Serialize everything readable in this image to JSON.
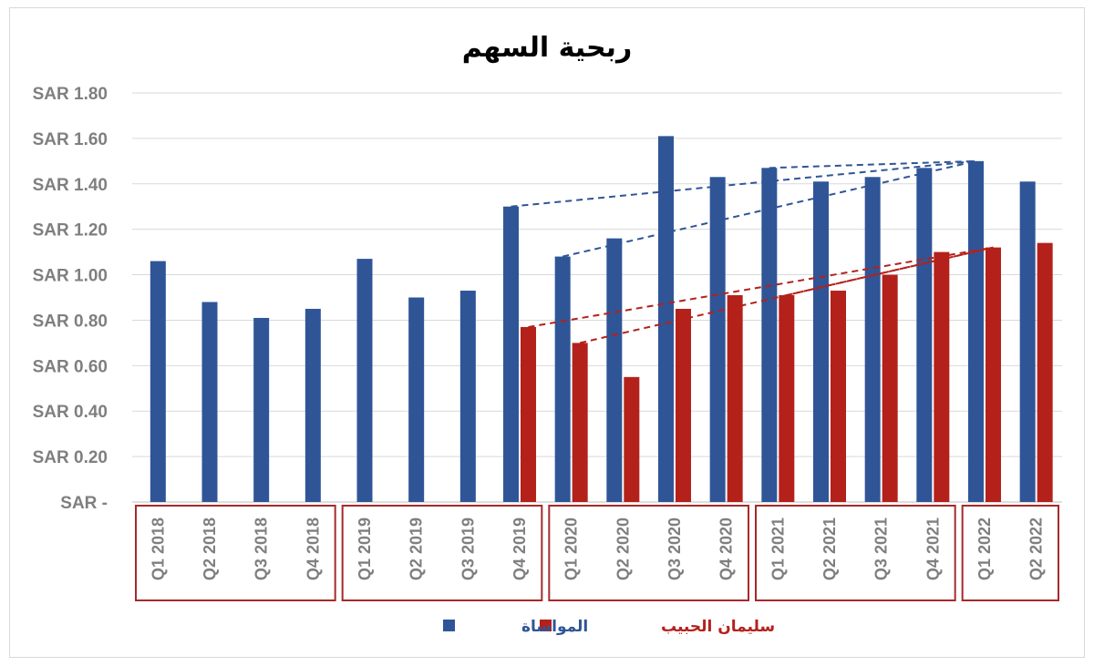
{
  "chart_data": {
    "type": "bar",
    "title": "ربحية السهم",
    "xlabel": "",
    "ylabel": "",
    "ylim": [
      0,
      1.8
    ],
    "y_ticks": [
      "SAR -",
      "SAR 0.20",
      "SAR 0.40",
      "SAR 0.60",
      "SAR 0.80",
      "SAR 1.00",
      "SAR 1.20",
      "SAR 1.40",
      "SAR 1.60",
      "SAR 1.80"
    ],
    "categories": [
      "Q1 2018",
      "Q2 2018",
      "Q3 2018",
      "Q4 2018",
      "Q1 2019",
      "Q2 2019",
      "Q3 2019",
      "Q4 2019",
      "Q1 2020",
      "Q2 2020",
      "Q3 2020",
      "Q4 2020",
      "Q1 2021",
      "Q2 2021",
      "Q3 2021",
      "Q4 2021",
      "Q1 2022",
      "Q2 2022"
    ],
    "series": [
      {
        "name": "المواساة",
        "color": "#2f5597",
        "values": [
          1.06,
          0.88,
          0.81,
          0.85,
          1.07,
          0.9,
          0.93,
          1.3,
          1.08,
          1.16,
          1.61,
          1.43,
          1.47,
          1.41,
          1.43,
          1.47,
          1.5,
          1.41
        ]
      },
      {
        "name": "سليمان الحبيب",
        "color": "#b4211b",
        "values": [
          null,
          null,
          null,
          null,
          null,
          null,
          null,
          0.77,
          0.7,
          0.55,
          0.85,
          0.91,
          0.91,
          0.93,
          1.0,
          1.1,
          1.12,
          1.14
        ]
      }
    ],
    "year_groups": [
      {
        "year": "2018",
        "from": 0,
        "to": 3
      },
      {
        "year": "2019",
        "from": 4,
        "to": 7
      },
      {
        "year": "2020",
        "from": 8,
        "to": 11
      },
      {
        "year": "2021",
        "from": 12,
        "to": 15
      },
      {
        "year": "2022",
        "from": 16,
        "to": 17
      }
    ],
    "trend_lines": [
      {
        "series": 0,
        "from": 7,
        "to": 16
      },
      {
        "series": 0,
        "from": 8,
        "to": 16
      },
      {
        "series": 0,
        "from": 12,
        "to": 16
      },
      {
        "series": 1,
        "from": 7,
        "to": 16
      },
      {
        "series": 1,
        "from": 8,
        "to": 16
      },
      {
        "series": 1,
        "from": 12,
        "to": 16
      }
    ],
    "grid": true,
    "legend": "bottom-center"
  }
}
